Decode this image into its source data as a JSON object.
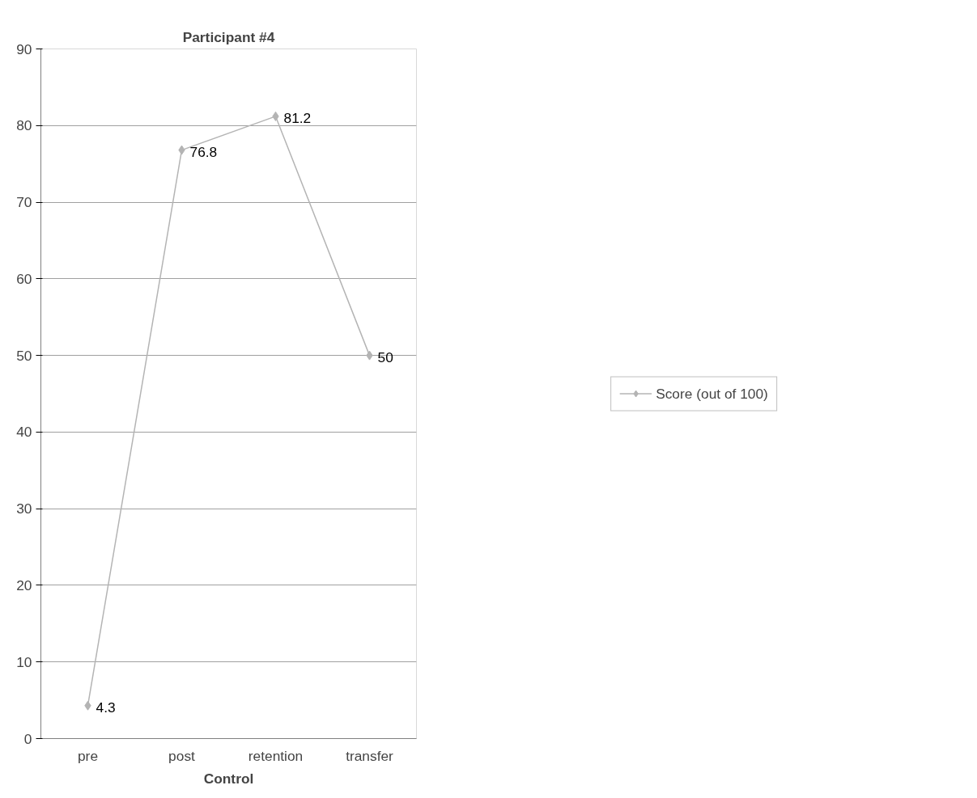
{
  "chart_data": {
    "type": "line",
    "title": "Participant #4",
    "xlabel": "Control",
    "categories": [
      "pre",
      "post",
      "retention",
      "transfer"
    ],
    "series": [
      {
        "name": "Score (out of 100)",
        "color": "#b4b4b4",
        "values": [
          4.3,
          76.8,
          81.2,
          50
        ]
      }
    ],
    "ylim": [
      0,
      90
    ],
    "yticks": [
      0,
      10,
      20,
      30,
      40,
      50,
      60,
      70,
      80,
      90
    ],
    "grid": "y",
    "legend": "right",
    "marker": "diamond",
    "line_style": "solid",
    "data_labels": true
  }
}
